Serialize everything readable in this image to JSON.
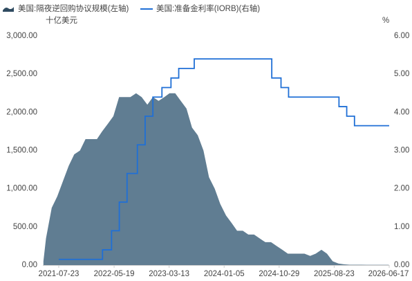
{
  "chart_data": {
    "type": "combo",
    "legend": "top",
    "left_unit": "十亿美元",
    "right_unit": "%",
    "x": [
      "2021-05-01",
      "2021-05-15",
      "2021-06-15",
      "2021-07-15",
      "2021-08-15",
      "2021-09-15",
      "2021-10-15",
      "2021-11-15",
      "2021-12-15",
      "2022-01-15",
      "2022-02-15",
      "2022-03-15",
      "2022-04-15",
      "2022-05-15",
      "2022-06-15",
      "2022-07-15",
      "2022-08-15",
      "2022-09-15",
      "2022-10-15",
      "2022-11-15",
      "2022-12-15",
      "2023-01-15",
      "2023-02-15",
      "2023-03-15",
      "2023-04-15",
      "2023-05-15",
      "2023-06-15",
      "2023-07-15",
      "2023-08-15",
      "2023-09-15",
      "2023-10-15",
      "2023-11-15",
      "2023-12-15",
      "2024-01-15",
      "2024-02-15",
      "2024-03-15",
      "2024-04-15",
      "2024-05-15",
      "2024-06-15",
      "2024-07-15",
      "2024-08-15",
      "2024-09-15",
      "2024-10-15",
      "2024-11-15",
      "2024-12-15",
      "2025-01-15",
      "2025-02-15",
      "2025-03-15",
      "2025-04-15",
      "2025-05-15",
      "2025-06-15",
      "2025-07-15",
      "2025-08-15",
      "2025-09-15",
      "2025-10-15",
      "2025-11-15",
      "2025-12-15",
      "2026-01-15",
      "2026-02-15",
      "2026-03-15",
      "2026-04-15",
      "2026-05-15",
      "2026-06-15"
    ],
    "series": [
      {
        "name": "美国:隔夜逆回购协议规模(左轴)",
        "type": "area",
        "axis": "y",
        "color": "#607d92",
        "values": [
          50,
          350,
          750,
          900,
          1100,
          1300,
          1450,
          1500,
          1650,
          1650,
          1650,
          1750,
          1850,
          1950,
          2200,
          2200,
          2200,
          2250,
          2200,
          2100,
          2200,
          2150,
          2200,
          2250,
          2250,
          2150,
          2050,
          1800,
          1700,
          1500,
          1150,
          1000,
          800,
          650,
          550,
          450,
          450,
          400,
          400,
          350,
          300,
          300,
          250,
          200,
          150,
          150,
          150,
          150,
          120,
          150,
          200,
          150,
          50,
          20,
          10,
          5,
          5,
          5,
          3,
          3,
          3,
          3,
          3
        ]
      },
      {
        "name": "美国:准备金利率(IORB)(右轴)",
        "type": "step-line",
        "axis": "y2",
        "color": "#1f6fd6",
        "x": [
          "2021-07-23",
          "2022-03-17",
          "2022-05-05",
          "2022-06-16",
          "2022-07-28",
          "2022-09-22",
          "2022-11-03",
          "2022-12-15",
          "2023-02-02",
          "2023-03-23",
          "2023-05-04",
          "2023-07-27",
          "2024-09-19",
          "2024-11-08",
          "2024-12-19",
          "2025-09-18",
          "2025-10-30",
          "2025-12-11",
          "2026-06-17"
        ],
        "values": [
          0.15,
          0.4,
          0.9,
          1.65,
          2.4,
          3.15,
          3.9,
          4.4,
          4.65,
          4.9,
          5.15,
          5.4,
          4.9,
          4.65,
          4.4,
          4.15,
          3.9,
          3.65,
          3.65
        ]
      }
    ],
    "xlim": [
      "2021-04-28",
      "2026-06-17"
    ],
    "xticks": [
      "2021-07-23",
      "2022-05-19",
      "2023-03-13",
      "2024-01-05",
      "2024-10-29",
      "2025-08-23",
      "2026-06-17"
    ],
    "ylim": [
      0,
      3000
    ],
    "yticks": [
      {
        "value": 0,
        "label": "0.00"
      },
      {
        "value": 500,
        "label": "500.00"
      },
      {
        "value": 1000,
        "label": "1,000.00"
      },
      {
        "value": 1500,
        "label": "1,500.00"
      },
      {
        "value": 2000,
        "label": "2,000.00"
      },
      {
        "value": 2500,
        "label": "2,500.00"
      },
      {
        "value": 3000,
        "label": "3,000.00"
      }
    ],
    "y2lim": [
      0,
      6
    ],
    "y2ticks": [
      {
        "value": 0,
        "label": "0.00"
      },
      {
        "value": 1,
        "label": "1.00"
      },
      {
        "value": 2,
        "label": "2.00"
      },
      {
        "value": 3,
        "label": "3.00"
      },
      {
        "value": 4,
        "label": "4.00"
      },
      {
        "value": 5,
        "label": "5.00"
      },
      {
        "value": 6,
        "label": "6.00"
      }
    ],
    "grid": false
  }
}
